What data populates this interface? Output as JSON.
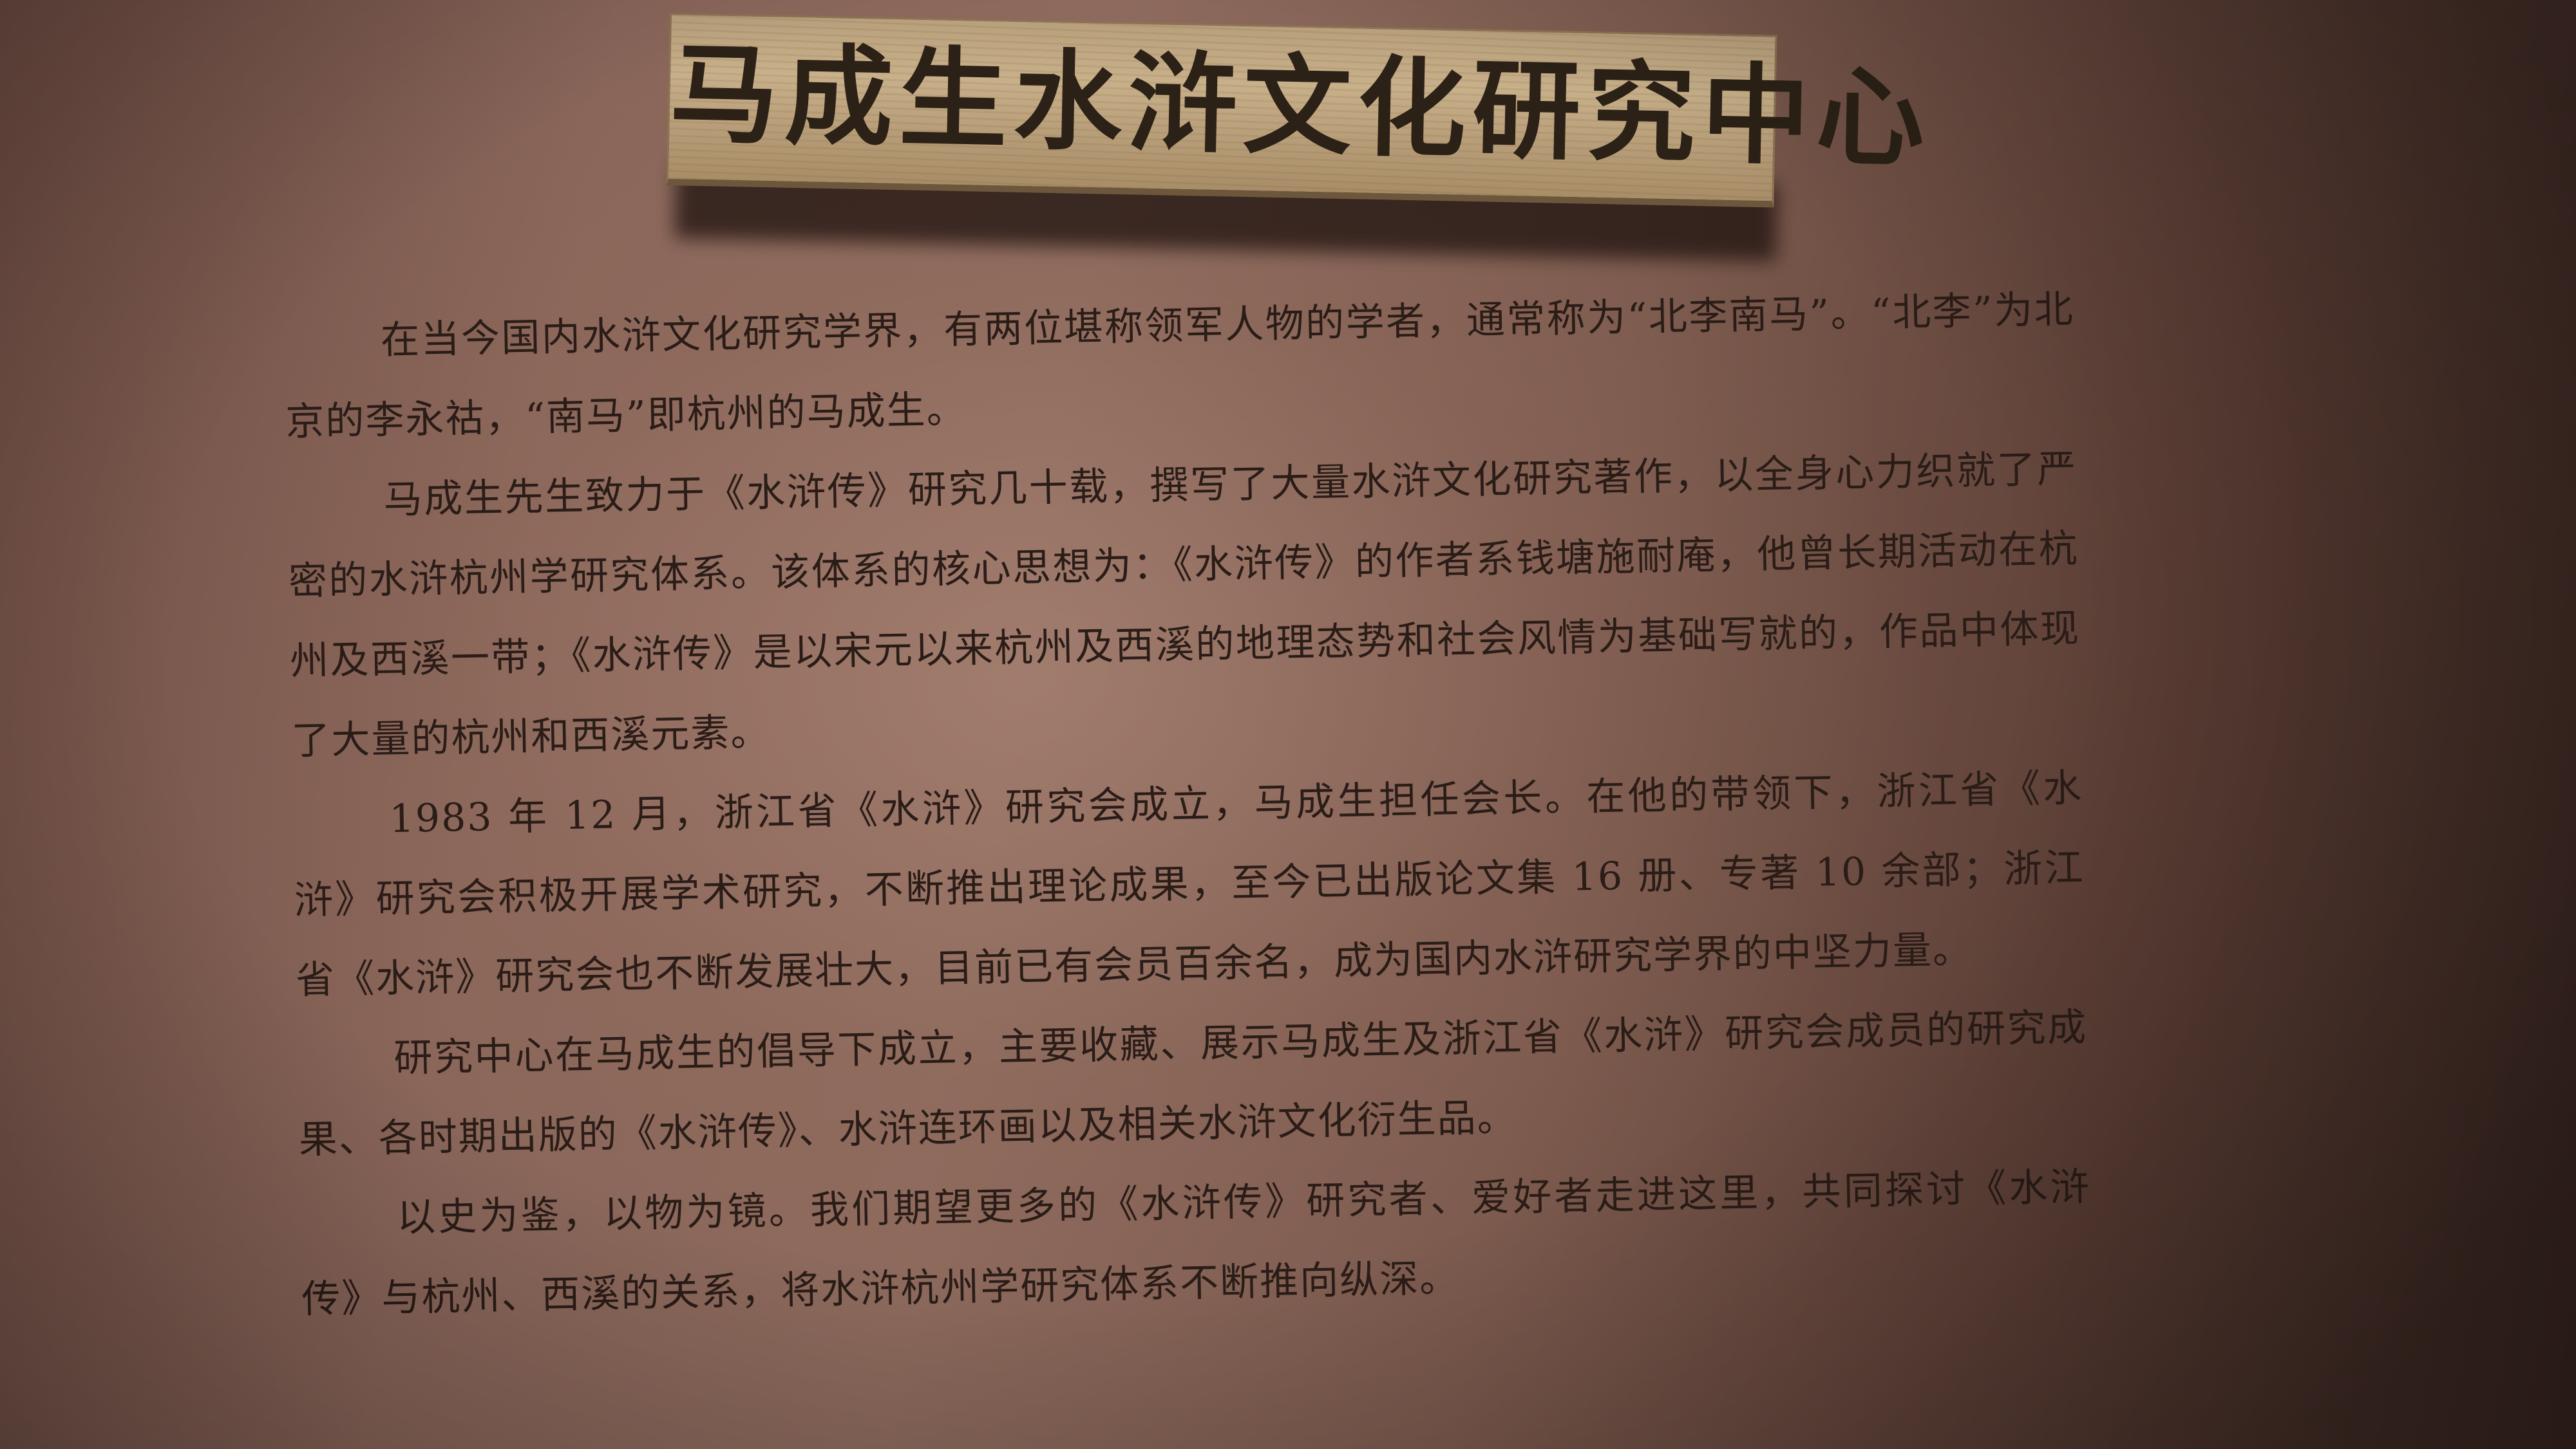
{
  "plaque": {
    "title": "马成生水浒文化研究中心"
  },
  "body": {
    "paragraphs": [
      "在当今国内水浒文化研究学界，有两位堪称领军人物的学者，通常称为“北李南马”。“北李”为北京的李永祜，“南马”即杭州的马成生。",
      "马成生先生致力于《水浒传》研究几十载，撰写了大量水浒文化研究著作，以全身心力织就了严密的水浒杭州学研究体系。该体系的核心思想为：《水浒传》的作者系钱塘施耐庵，他曾长期活动在杭州及西溪一带；《水浒传》是以宋元以来杭州及西溪的地理态势和社会风情为基础写就的，作品中体现了大量的杭州和西溪元素。",
      "1983 年 12 月，浙江省《水浒》研究会成立，马成生担任会长。在他的带领下，浙江省《水浒》研究会积极开展学术研究，不断推出理论成果，至今已出版论文集 16 册、专著 10 余部；浙江省《水浒》研究会也不断发展壮大，目前已有会员百余名，成为国内水浒研究学界的中坚力量。",
      "研究中心在马成生的倡导下成立，主要收藏、展示马成生及浙江省《水浒》研究会成员的研究成果、各时期出版的《水浒传》、水浒连环画以及相关水浒文化衍生品。",
      "以史为鉴，以物为镜。我们期望更多的《水浒传》研究者、爱好者走进这里，共同探讨《水浒传》与杭州、西溪的关系，将水浒杭州学研究体系不断推向纵深。"
    ]
  }
}
